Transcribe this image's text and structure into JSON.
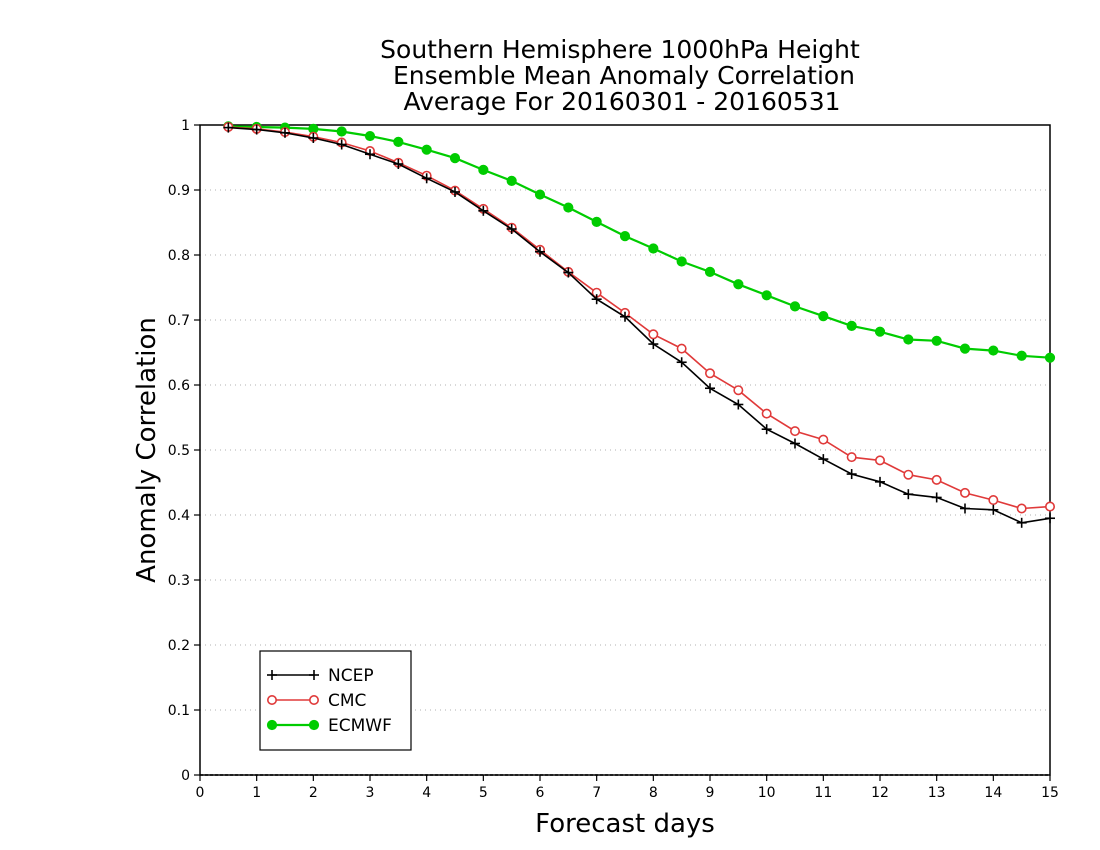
{
  "chart_data": {
    "type": "line",
    "title": [
      "Southern Hemisphere 1000hPa Height",
      "Ensemble Mean Anomaly Correlation",
      "Average For 20160301 - 20160531"
    ],
    "xlabel": "Forecast days",
    "ylabel": "Anomaly Correlation",
    "xlim": [
      0,
      15
    ],
    "ylim": [
      0,
      1
    ],
    "xticks": [
      "0",
      "1",
      "2",
      "3",
      "4",
      "5",
      "6",
      "7",
      "8",
      "9",
      "10",
      "11",
      "12",
      "13",
      "14",
      "15"
    ],
    "yticks": [
      "0",
      "0.1",
      "0.2",
      "0.3",
      "0.4",
      "0.5",
      "0.6",
      "0.7",
      "0.8",
      "0.9",
      "1"
    ],
    "grid": "horizontal dotted",
    "legend_position": "bottom-left",
    "x": [
      0.5,
      1,
      1.5,
      2,
      2.5,
      3,
      3.5,
      4,
      4.5,
      5,
      5.5,
      6,
      6.5,
      7,
      7.5,
      8,
      8.5,
      9,
      9.5,
      10,
      10.5,
      11,
      11.5,
      12,
      12.5,
      13,
      13.5,
      14,
      14.5,
      15
    ],
    "series": [
      {
        "name": "NCEP",
        "color": "#000000",
        "marker": "plus",
        "values": [
          0.996,
          0.993,
          0.988,
          0.98,
          0.97,
          0.955,
          0.94,
          0.918,
          0.897,
          0.868,
          0.84,
          0.805,
          0.773,
          0.732,
          0.705,
          0.663,
          0.635,
          0.595,
          0.57,
          0.532,
          0.51,
          0.486,
          0.463,
          0.451,
          0.432,
          0.427,
          0.41,
          0.408,
          0.388,
          0.395
        ]
      },
      {
        "name": "CMC",
        "color": "#e03a3a",
        "marker": "open-circle",
        "values": [
          0.997,
          0.994,
          0.989,
          0.982,
          0.973,
          0.96,
          0.942,
          0.922,
          0.899,
          0.871,
          0.842,
          0.808,
          0.774,
          0.742,
          0.711,
          0.678,
          0.656,
          0.618,
          0.592,
          0.556,
          0.529,
          0.516,
          0.489,
          0.484,
          0.462,
          0.454,
          0.434,
          0.423,
          0.41,
          0.413
        ]
      },
      {
        "name": "ECMWF",
        "color": "#00cc00",
        "marker": "filled-circle",
        "values": [
          0.998,
          0.997,
          0.996,
          0.994,
          0.99,
          0.983,
          0.974,
          0.962,
          0.949,
          0.931,
          0.914,
          0.893,
          0.873,
          0.851,
          0.829,
          0.81,
          0.79,
          0.774,
          0.755,
          0.738,
          0.721,
          0.706,
          0.691,
          0.682,
          0.67,
          0.668,
          0.656,
          0.653,
          0.645,
          0.642
        ]
      }
    ]
  }
}
